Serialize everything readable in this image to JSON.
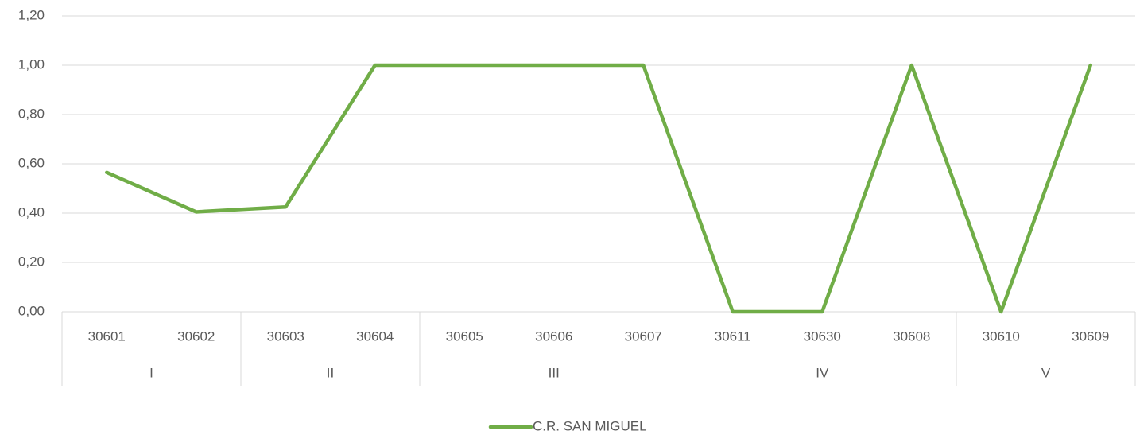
{
  "chart_data": {
    "type": "line",
    "groups": [
      {
        "name": "I",
        "categories": [
          "30601",
          "30602"
        ]
      },
      {
        "name": "II",
        "categories": [
          "30603",
          "30604"
        ]
      },
      {
        "name": "III",
        "categories": [
          "30605",
          "30606",
          "30607"
        ]
      },
      {
        "name": "IV",
        "categories": [
          "30611",
          "30630",
          "30608"
        ]
      },
      {
        "name": "V",
        "categories": [
          "30610",
          "30609"
        ]
      }
    ],
    "series": [
      {
        "name": "C.R. SAN MIGUEL",
        "color": "#70ad47",
        "values": [
          0.565,
          0.405,
          0.425,
          1.0,
          1.0,
          1.0,
          1.0,
          0.0,
          0.0,
          1.0,
          0.0,
          1.0
        ]
      }
    ],
    "ylim": [
      0,
      1.2
    ],
    "yticks": [
      {
        "value": 0,
        "label": "0,00"
      },
      {
        "value": 0.2,
        "label": "0,20"
      },
      {
        "value": 0.4,
        "label": "0,40"
      },
      {
        "value": 0.6,
        "label": "0,60"
      },
      {
        "value": 0.8,
        "label": "0,80"
      },
      {
        "value": 1.0,
        "label": "1,00"
      },
      {
        "value": 1.2,
        "label": "1,20"
      }
    ],
    "grid": true,
    "legend": "bottom"
  }
}
